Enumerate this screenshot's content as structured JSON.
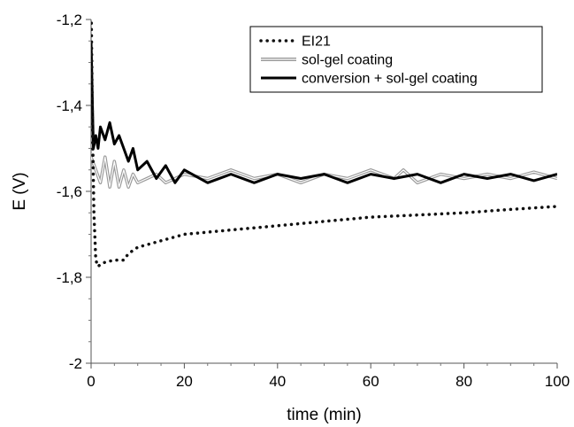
{
  "chart_data": {
    "type": "line",
    "xlabel": "time (min)",
    "ylabel": "E (V)",
    "xlim": [
      0,
      100
    ],
    "ylim": [
      -2,
      -1.2
    ],
    "x_ticks": [
      0,
      20,
      40,
      60,
      80,
      100
    ],
    "x_tick_labels": [
      "0",
      "20",
      "40",
      "60",
      "80",
      "100"
    ],
    "y_ticks": [
      -2,
      -1.8,
      -1.6,
      -1.4,
      -1.2
    ],
    "y_tick_labels": [
      "-2",
      "-1,8",
      "-1,6",
      "-1,4",
      "-1,2"
    ],
    "grid": false,
    "legend_position": "top-right",
    "series": [
      {
        "name": "EI21",
        "style": "dotted",
        "color": "#111111",
        "x": [
          0,
          0.3,
          0.6,
          1.0,
          1.5,
          2,
          3,
          5,
          7,
          8,
          10,
          15,
          20,
          30,
          40,
          50,
          60,
          70,
          80,
          90,
          100
        ],
        "y": [
          -1.15,
          -1.45,
          -1.65,
          -1.76,
          -1.775,
          -1.77,
          -1.765,
          -1.76,
          -1.76,
          -1.745,
          -1.73,
          -1.715,
          -1.7,
          -1.69,
          -1.68,
          -1.67,
          -1.66,
          -1.655,
          -1.65,
          -1.642,
          -1.635
        ]
      },
      {
        "name": "sol-gel coating",
        "style": "double",
        "color": "#999999",
        "x": [
          0,
          1,
          2,
          3,
          4,
          5,
          6,
          7,
          8,
          9,
          10,
          12,
          14,
          16,
          18,
          20,
          25,
          30,
          35,
          40,
          45,
          50,
          55,
          60,
          65,
          67,
          70,
          75,
          80,
          85,
          90,
          95,
          100
        ],
        "y": [
          -1.52,
          -1.55,
          -1.58,
          -1.52,
          -1.59,
          -1.53,
          -1.59,
          -1.55,
          -1.59,
          -1.56,
          -1.58,
          -1.57,
          -1.56,
          -1.58,
          -1.57,
          -1.56,
          -1.57,
          -1.55,
          -1.57,
          -1.56,
          -1.58,
          -1.56,
          -1.57,
          -1.55,
          -1.57,
          -1.55,
          -1.58,
          -1.56,
          -1.57,
          -1.56,
          -1.57,
          -1.555,
          -1.57
        ]
      },
      {
        "name": "conversion + sol-gel coating",
        "style": "solid",
        "color": "#000000",
        "x": [
          0,
          0.5,
          1,
          1.5,
          2,
          3,
          4,
          5,
          6,
          7,
          8,
          9,
          10,
          12,
          14,
          16,
          18,
          20,
          25,
          30,
          35,
          40,
          45,
          50,
          55,
          60,
          65,
          70,
          75,
          80,
          85,
          90,
          95,
          100
        ],
        "y": [
          -1.25,
          -1.5,
          -1.47,
          -1.5,
          -1.45,
          -1.48,
          -1.44,
          -1.49,
          -1.47,
          -1.5,
          -1.53,
          -1.5,
          -1.55,
          -1.53,
          -1.57,
          -1.54,
          -1.58,
          -1.55,
          -1.58,
          -1.56,
          -1.58,
          -1.56,
          -1.57,
          -1.56,
          -1.58,
          -1.56,
          -1.57,
          -1.56,
          -1.58,
          -1.56,
          -1.57,
          -1.56,
          -1.575,
          -1.56
        ]
      }
    ]
  }
}
